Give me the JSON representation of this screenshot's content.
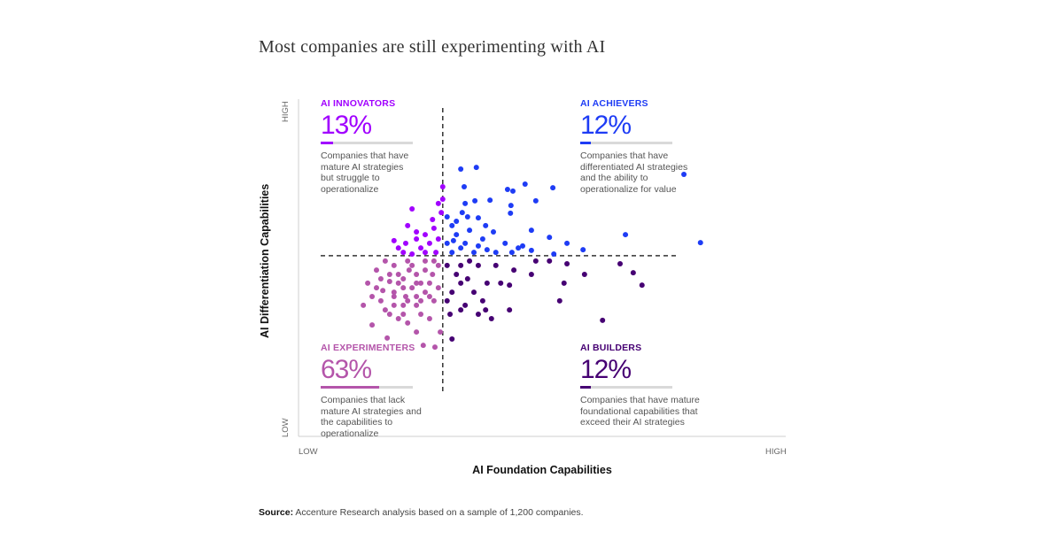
{
  "chart_data": {
    "type": "scatter",
    "title": "Most companies are still experimenting with AI",
    "xlabel": "AI Foundation Capabilities",
    "ylabel": "AI Differentiation Capabilities",
    "x_ticks": [
      "LOW",
      "HIGH"
    ],
    "y_ticks": [
      "LOW",
      "HIGH"
    ],
    "xlim": [
      0,
      100
    ],
    "ylim": [
      0,
      100
    ],
    "grid": false,
    "dividers": {
      "x": 29.6,
      "y": 54
    },
    "quadrants": [
      {
        "name": "AI INNOVATORS",
        "percent": "13%",
        "value": 13,
        "color": "#a100ff",
        "description": "Companies that have mature AI strategies but struggle to operationalize"
      },
      {
        "name": "AI ACHIEVERS",
        "percent": "12%",
        "value": 12,
        "color": "#1e3cf5",
        "description": "Companies that have differentiated AI strategies and the ability to operationalize for value"
      },
      {
        "name": "AI EXPERIMENTERS",
        "percent": "63%",
        "value": 63,
        "color": "#b455aa",
        "description": "Companies that lack mature AI strategies and the capabilities to operationalize"
      },
      {
        "name": "AI BUILDERS",
        "percent": "12%",
        "value": 12,
        "color": "#460073",
        "description": "Companies that have mature foundational capabilities that exceed their AI strategies"
      }
    ],
    "series": [
      {
        "name": "AI INNOVATORS",
        "color": "#a100ff",
        "points": [
          [
            29.6,
            74.6
          ],
          [
            29.6,
            70.9
          ],
          [
            28.7,
            69.6
          ],
          [
            29.3,
            66.9
          ],
          [
            23.3,
            68.0
          ],
          [
            22.4,
            63.0
          ],
          [
            19.6,
            58.5
          ],
          [
            20.5,
            56.3
          ],
          [
            21.5,
            55.0
          ],
          [
            24.2,
            59.0
          ],
          [
            26.0,
            60.3
          ],
          [
            27.8,
            62.2
          ],
          [
            26.9,
            57.7
          ],
          [
            25.1,
            56.3
          ],
          [
            23.3,
            54.5
          ],
          [
            28.7,
            59.0
          ],
          [
            28.2,
            55.0
          ],
          [
            26.0,
            55.0
          ],
          [
            24.2,
            61.1
          ],
          [
            22.0,
            57.7
          ],
          [
            27.5,
            64.8
          ]
        ]
      },
      {
        "name": "AI ACHIEVERS",
        "color": "#1e3cf5",
        "points": [
          [
            33.3,
            79.9
          ],
          [
            36.5,
            80.4
          ],
          [
            79.1,
            78.3
          ],
          [
            46.5,
            75.4
          ],
          [
            52.2,
            74.3
          ],
          [
            42.9,
            73.8
          ],
          [
            44.0,
            73.3
          ],
          [
            34.0,
            74.6
          ],
          [
            34.2,
            69.6
          ],
          [
            39.3,
            70.6
          ],
          [
            43.5,
            66.7
          ],
          [
            43.6,
            69.0
          ],
          [
            48.7,
            70.4
          ],
          [
            33.6,
            66.9
          ],
          [
            36.2,
            70.4
          ],
          [
            36.9,
            65.3
          ],
          [
            51.5,
            59.5
          ],
          [
            67.1,
            60.3
          ],
          [
            82.5,
            57.9
          ],
          [
            55.1,
            57.7
          ],
          [
            47.8,
            61.6
          ],
          [
            40.0,
            61.1
          ],
          [
            31.5,
            63.0
          ],
          [
            32.4,
            60.3
          ],
          [
            35.1,
            61.6
          ],
          [
            37.8,
            59.0
          ],
          [
            30.5,
            57.7
          ],
          [
            33.3,
            56.3
          ],
          [
            36.0,
            55.0
          ],
          [
            40.5,
            55.0
          ],
          [
            45.1,
            56.3
          ],
          [
            47.8,
            55.6
          ],
          [
            58.4,
            55.8
          ],
          [
            52.4,
            54.5
          ],
          [
            30.5,
            65.6
          ],
          [
            32.4,
            64.3
          ],
          [
            34.7,
            65.6
          ],
          [
            38.4,
            63.0
          ],
          [
            31.8,
            58.5
          ],
          [
            34.2,
            57.7
          ],
          [
            36.9,
            56.9
          ],
          [
            38.7,
            55.8
          ],
          [
            42.4,
            57.7
          ],
          [
            43.8,
            55.0
          ],
          [
            46.0,
            56.9
          ],
          [
            31.5,
            55.0
          ]
        ]
      },
      {
        "name": "AI EXPERIMENTERS",
        "color": "#b455aa",
        "points": [
          [
            18.2,
            29.4
          ],
          [
            25.6,
            27.2
          ],
          [
            28.0,
            26.7
          ],
          [
            15.1,
            33.3
          ],
          [
            18.7,
            36.5
          ],
          [
            21.5,
            39.2
          ],
          [
            24.2,
            41.8
          ],
          [
            26.9,
            45.8
          ],
          [
            16.9,
            40.5
          ],
          [
            14.2,
            45.8
          ],
          [
            16.0,
            49.7
          ],
          [
            19.6,
            51.1
          ],
          [
            22.4,
            52.4
          ],
          [
            26.0,
            52.4
          ],
          [
            28.7,
            51.1
          ],
          [
            27.8,
            40.5
          ],
          [
            25.1,
            36.5
          ],
          [
            22.4,
            33.9
          ],
          [
            19.6,
            43.1
          ],
          [
            15.1,
            41.8
          ],
          [
            16.9,
            47.1
          ],
          [
            24.2,
            48.4
          ],
          [
            21.5,
            47.1
          ],
          [
            18.7,
            46.3
          ],
          [
            23.3,
            44.4
          ],
          [
            26.0,
            43.1
          ],
          [
            28.7,
            44.4
          ],
          [
            17.8,
            52.4
          ],
          [
            20.5,
            35.2
          ],
          [
            13.3,
            39.2
          ],
          [
            26.9,
            35.2
          ],
          [
            29.1,
            31.2
          ],
          [
            24.2,
            31.2
          ],
          [
            20.5,
            48.4
          ],
          [
            22.7,
            49.7
          ],
          [
            25.1,
            45.8
          ],
          [
            27.5,
            48.4
          ],
          [
            17.3,
            43.6
          ],
          [
            19.6,
            39.2
          ],
          [
            22.0,
            41.8
          ],
          [
            20.5,
            45.8
          ],
          [
            22.4,
            40.5
          ],
          [
            24.2,
            39.2
          ],
          [
            26.0,
            49.7
          ],
          [
            18.7,
            48.4
          ],
          [
            21.5,
            44.4
          ],
          [
            23.3,
            51.1
          ],
          [
            25.1,
            40.5
          ],
          [
            26.9,
            41.8
          ],
          [
            19.6,
            41.8
          ],
          [
            17.8,
            37.8
          ],
          [
            24.2,
            45.8
          ],
          [
            27.8,
            52.4
          ],
          [
            16.0,
            44.4
          ],
          [
            21.5,
            36.5
          ]
        ]
      },
      {
        "name": "AI BUILDERS",
        "color": "#460073",
        "points": [
          [
            31.5,
            29.1
          ],
          [
            31.1,
            36.5
          ],
          [
            33.3,
            37.8
          ],
          [
            36.9,
            36.5
          ],
          [
            38.4,
            37.8
          ],
          [
            39.6,
            35.2
          ],
          [
            43.3,
            37.8
          ],
          [
            53.6,
            40.5
          ],
          [
            54.5,
            45.8
          ],
          [
            62.4,
            34.7
          ],
          [
            68.7,
            48.9
          ],
          [
            70.5,
            45.2
          ],
          [
            58.7,
            48.4
          ],
          [
            51.5,
            52.4
          ],
          [
            48.7,
            52.4
          ],
          [
            47.8,
            48.4
          ],
          [
            44.2,
            49.7
          ],
          [
            41.5,
            45.8
          ],
          [
            38.7,
            45.8
          ],
          [
            36.0,
            43.1
          ],
          [
            33.3,
            45.8
          ],
          [
            31.5,
            43.1
          ],
          [
            30.5,
            51.1
          ],
          [
            33.3,
            51.1
          ],
          [
            36.9,
            51.1
          ],
          [
            32.4,
            48.4
          ],
          [
            34.7,
            47.1
          ],
          [
            37.8,
            40.5
          ],
          [
            34.2,
            39.2
          ],
          [
            40.5,
            51.1
          ],
          [
            55.1,
            51.6
          ],
          [
            66.0,
            51.6
          ],
          [
            43.3,
            45.2
          ],
          [
            30.5,
            40.5
          ],
          [
            35.1,
            52.4
          ]
        ]
      }
    ]
  },
  "source": {
    "label": "Source:",
    "text": " Accenture Research analysis based on a sample of 1,200 companies."
  }
}
